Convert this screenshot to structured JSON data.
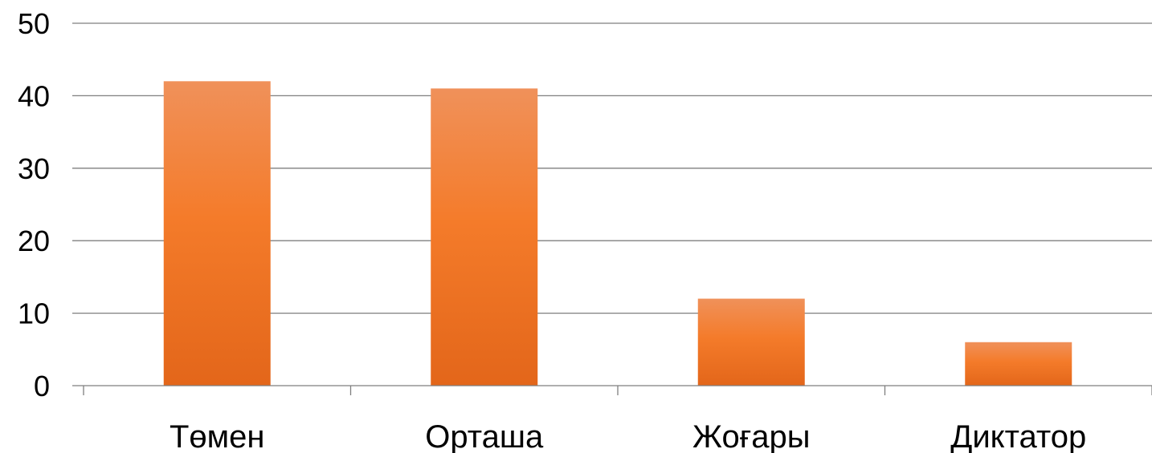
{
  "chart_data": {
    "type": "bar",
    "categories": [
      "Төмен",
      "Орташа",
      "Жоғары",
      "Диктатор"
    ],
    "values": [
      42,
      41,
      12,
      6
    ],
    "title": "",
    "xlabel": "",
    "ylabel": "",
    "ylim": [
      0,
      50
    ],
    "yticks": [
      0,
      10,
      20,
      30,
      40,
      50
    ],
    "grid": true,
    "legend": "none",
    "bar_color_top": "#f0915a",
    "bar_color_mid": "#f47b2a",
    "bar_color_bottom": "#e3661a"
  }
}
